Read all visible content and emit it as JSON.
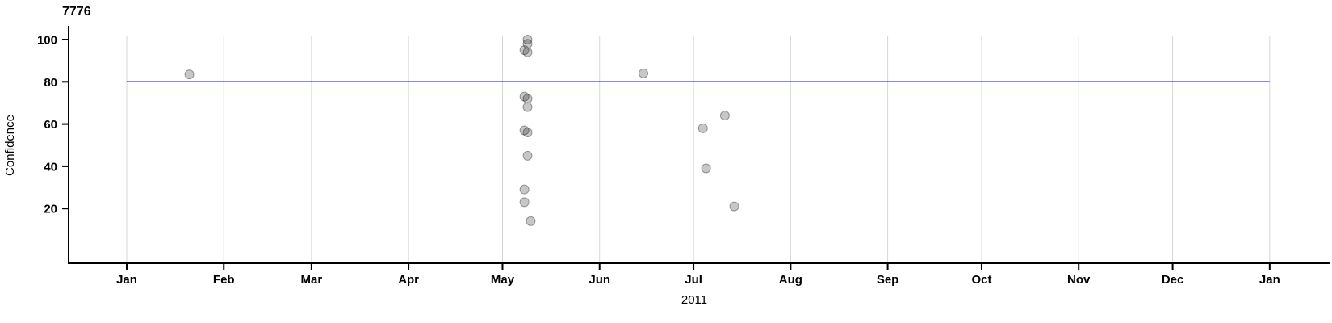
{
  "chart_data": {
    "type": "scatter",
    "title": "7776",
    "xlabel": "2011",
    "ylabel": "Confidence",
    "x_axis": {
      "unit": "date",
      "range": [
        "2011-01-01",
        "2012-01-01"
      ],
      "ticks": [
        {
          "label": "Jan",
          "date": "2011-01-01"
        },
        {
          "label": "Feb",
          "date": "2011-02-01"
        },
        {
          "label": "Mar",
          "date": "2011-03-01"
        },
        {
          "label": "Apr",
          "date": "2011-04-01"
        },
        {
          "label": "May",
          "date": "2011-05-01"
        },
        {
          "label": "Jun",
          "date": "2011-06-01"
        },
        {
          "label": "Jul",
          "date": "2011-07-01"
        },
        {
          "label": "Aug",
          "date": "2011-08-01"
        },
        {
          "label": "Sep",
          "date": "2011-09-01"
        },
        {
          "label": "Oct",
          "date": "2011-10-01"
        },
        {
          "label": "Nov",
          "date": "2011-11-01"
        },
        {
          "label": "Dec",
          "date": "2011-12-01"
        },
        {
          "label": "Jan",
          "date": "2012-01-01"
        }
      ]
    },
    "y_axis": {
      "ticks": [
        100,
        80,
        60,
        40,
        20
      ],
      "range": [
        -6,
        104
      ]
    },
    "grid": {
      "vertical_monthly": true,
      "horizontal": false
    },
    "reference_line": {
      "value": 80,
      "from": "2011-01-01",
      "to": "2012-01-01",
      "color": "#1414cc"
    },
    "points": [
      {
        "date": "2011-01-21",
        "value": 83.5
      },
      {
        "date": "2011-05-09",
        "value": 100
      },
      {
        "date": "2011-05-09",
        "value": 98
      },
      {
        "date": "2011-05-08",
        "value": 95
      },
      {
        "date": "2011-05-09",
        "value": 94
      },
      {
        "date": "2011-05-08",
        "value": 73
      },
      {
        "date": "2011-05-09",
        "value": 72
      },
      {
        "date": "2011-05-09",
        "value": 68
      },
      {
        "date": "2011-05-08",
        "value": 57
      },
      {
        "date": "2011-05-09",
        "value": 56
      },
      {
        "date": "2011-05-09",
        "value": 45
      },
      {
        "date": "2011-05-08",
        "value": 29
      },
      {
        "date": "2011-05-08",
        "value": 23
      },
      {
        "date": "2011-05-10",
        "value": 14
      },
      {
        "date": "2011-06-15",
        "value": 84
      },
      {
        "date": "2011-07-04",
        "value": 58
      },
      {
        "date": "2011-07-05",
        "value": 39
      },
      {
        "date": "2011-07-11",
        "value": 64
      },
      {
        "date": "2011-07-14",
        "value": 21
      }
    ],
    "colors": {
      "point_fill": "rgba(0,0,0,0.22)",
      "point_stroke": "rgba(0,0,0,0.35)",
      "gridline": "#d6d6d6",
      "axis": "#000000",
      "text": "#000000"
    }
  }
}
